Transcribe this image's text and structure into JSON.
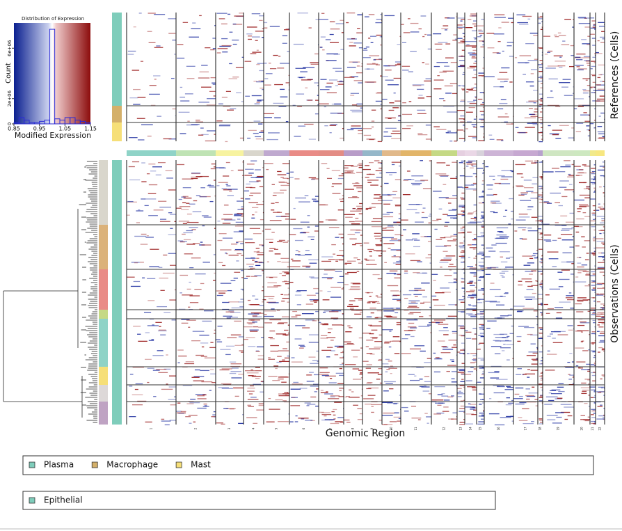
{
  "chart_data": [
    {
      "type": "histogram",
      "title": "Distribution of Expression",
      "x_label": "Modified Expression",
      "y_label": "Count",
      "bins": [
        0.85,
        0.87,
        0.89,
        0.91,
        0.93,
        0.95,
        0.97,
        0.99,
        1.01,
        1.03,
        1.05,
        1.07,
        1.09,
        1.11,
        1.13,
        1.15
      ],
      "values": [
        100000,
        500000,
        300000,
        100000,
        100000,
        200000,
        300000,
        7500000,
        400000,
        300000,
        500000,
        500000,
        300000,
        200000,
        100000
      ],
      "color": "#2b2bd6",
      "xlim": [
        0.85,
        1.15
      ],
      "xticks": [
        0.85,
        0.95,
        1.05,
        1.15
      ],
      "ylim": [
        0,
        8000000
      ],
      "yticks": [
        0,
        {
          "value": 2000000,
          "label": "2e+06"
        },
        {
          "value": 6000000,
          "label": "6e+06"
        }
      ]
    },
    {
      "type": "heatmap",
      "x_label": "Genomic Region",
      "references_label": "References (Cells)",
      "observations_label": "Observations (Cells)",
      "categories": [
        "1",
        "2",
        "3",
        "4",
        "5",
        "6",
        "7",
        "8",
        "9",
        "10",
        "11",
        "12",
        "13",
        "14",
        "15",
        "16",
        "17",
        "18",
        "19",
        "20",
        "21",
        "22"
      ],
      "legends": [
        [
          {
            "name": "Plasma",
            "color": "#7fcdbb"
          },
          {
            "name": "Macrophage",
            "color": "#d4b06a"
          },
          {
            "name": "Mast",
            "color": "#f6df78"
          }
        ],
        [
          {
            "name": "Epithelial",
            "color": "#7fcdbb"
          }
        ]
      ]
    }
  ]
}
